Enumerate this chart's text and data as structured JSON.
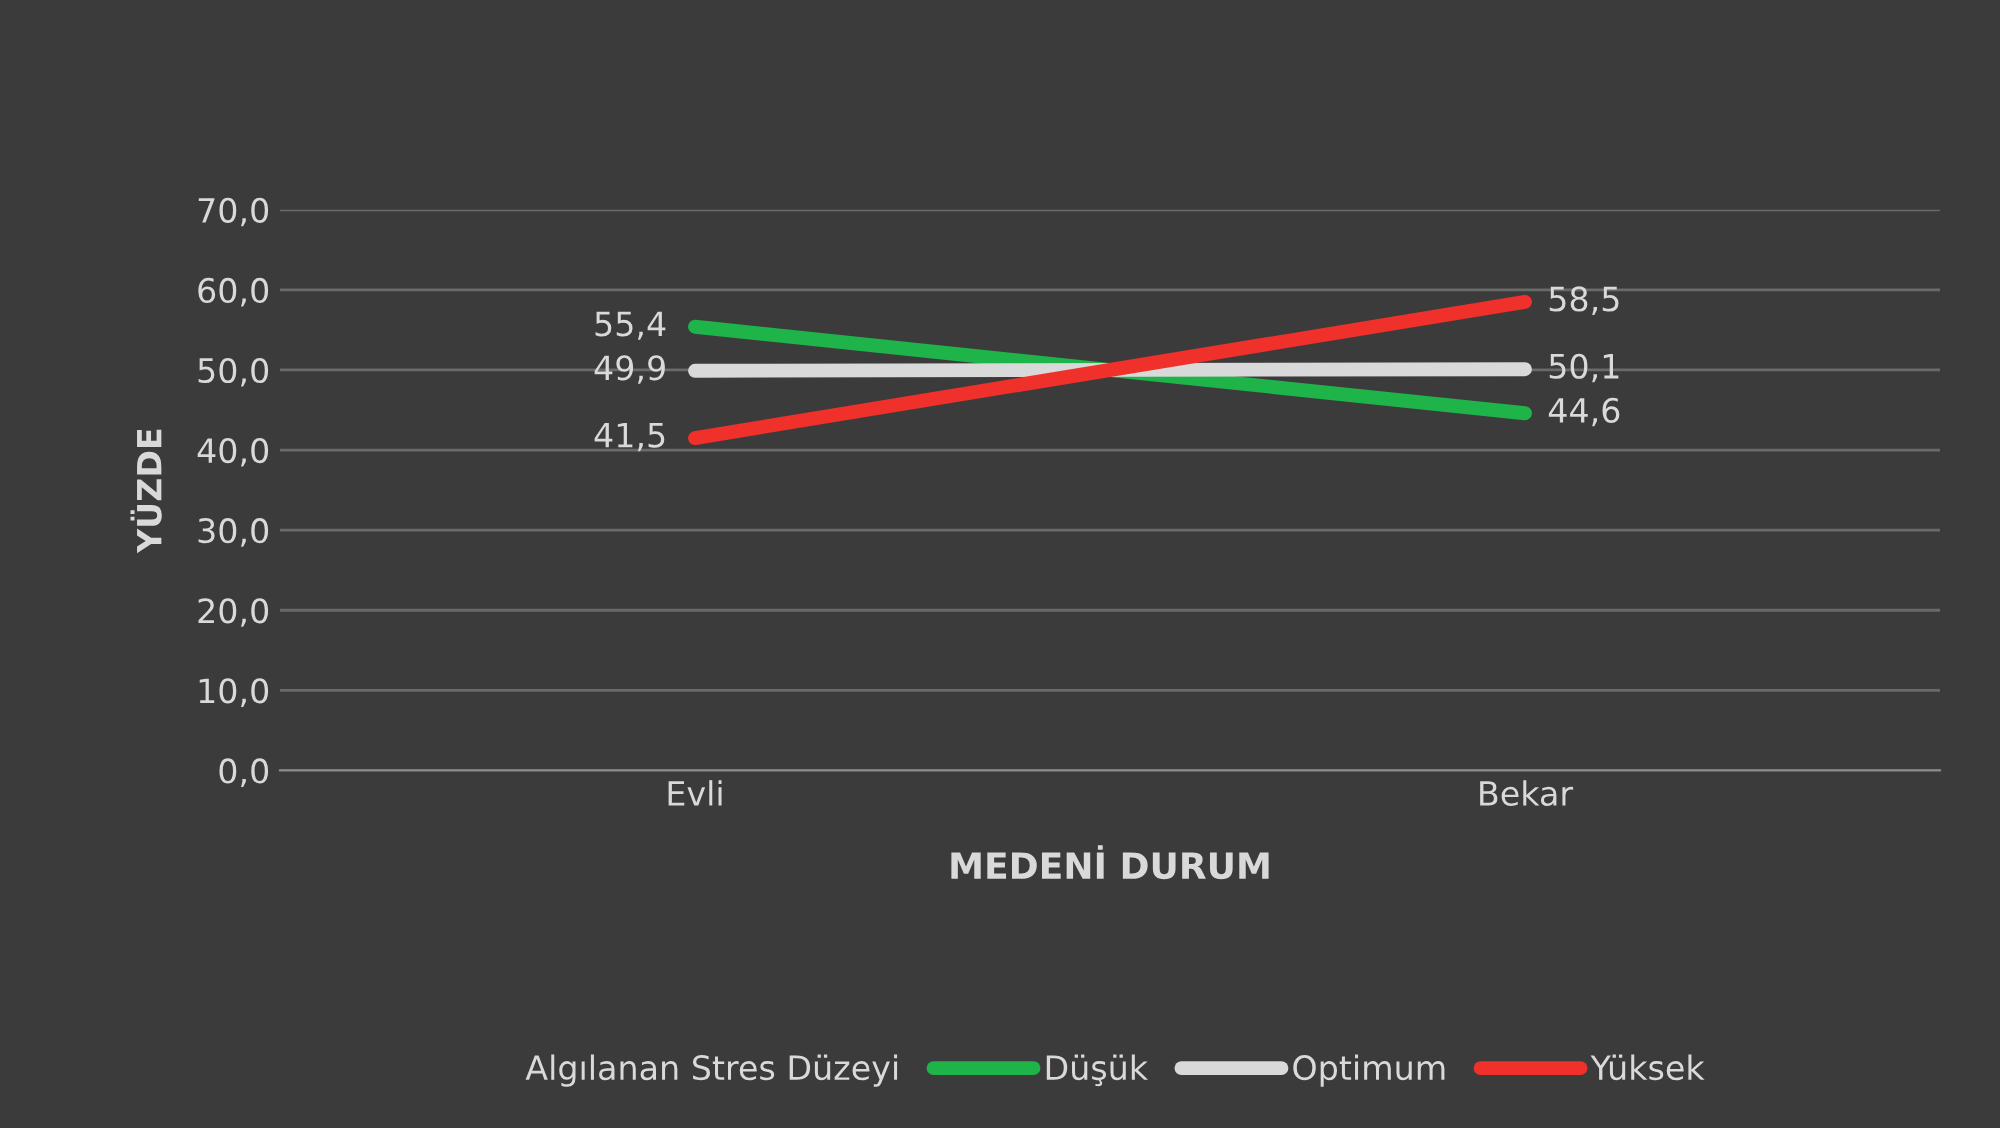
{
  "chart_data": {
    "type": "line",
    "xlabel": "MEDENİ DURUM",
    "ylabel": "YÜZDE",
    "legend_title": "Algılanan Stres Düzeyi",
    "categories": [
      "Evli",
      "Bekar"
    ],
    "series": [
      {
        "name": "Düşük",
        "color": "#1fb44a",
        "values": [
          55.4,
          44.6
        ],
        "value_labels": [
          "55,4",
          "44,6"
        ]
      },
      {
        "name": "Optimum",
        "color": "#d9d9d9",
        "values": [
          49.9,
          50.1
        ],
        "value_labels": [
          "49,9",
          "50,1"
        ]
      },
      {
        "name": "Yüksek",
        "color": "#f0302a",
        "values": [
          41.5,
          58.5
        ],
        "value_labels": [
          "41,5",
          "58,5"
        ]
      }
    ],
    "ylim": [
      0,
      70
    ],
    "yticks": [
      {
        "value": 0,
        "label": "0,0"
      },
      {
        "value": 10,
        "label": "10,0"
      },
      {
        "value": 20,
        "label": "20,0"
      },
      {
        "value": 30,
        "label": "30,0"
      },
      {
        "value": 40,
        "label": "40,0"
      },
      {
        "value": 50,
        "label": "50,0"
      },
      {
        "value": 60,
        "label": "60,0"
      },
      {
        "value": 70,
        "label": "70,0"
      }
    ],
    "grid": "y",
    "legend": "bottom",
    "marker": "none",
    "line_style": "solid"
  }
}
